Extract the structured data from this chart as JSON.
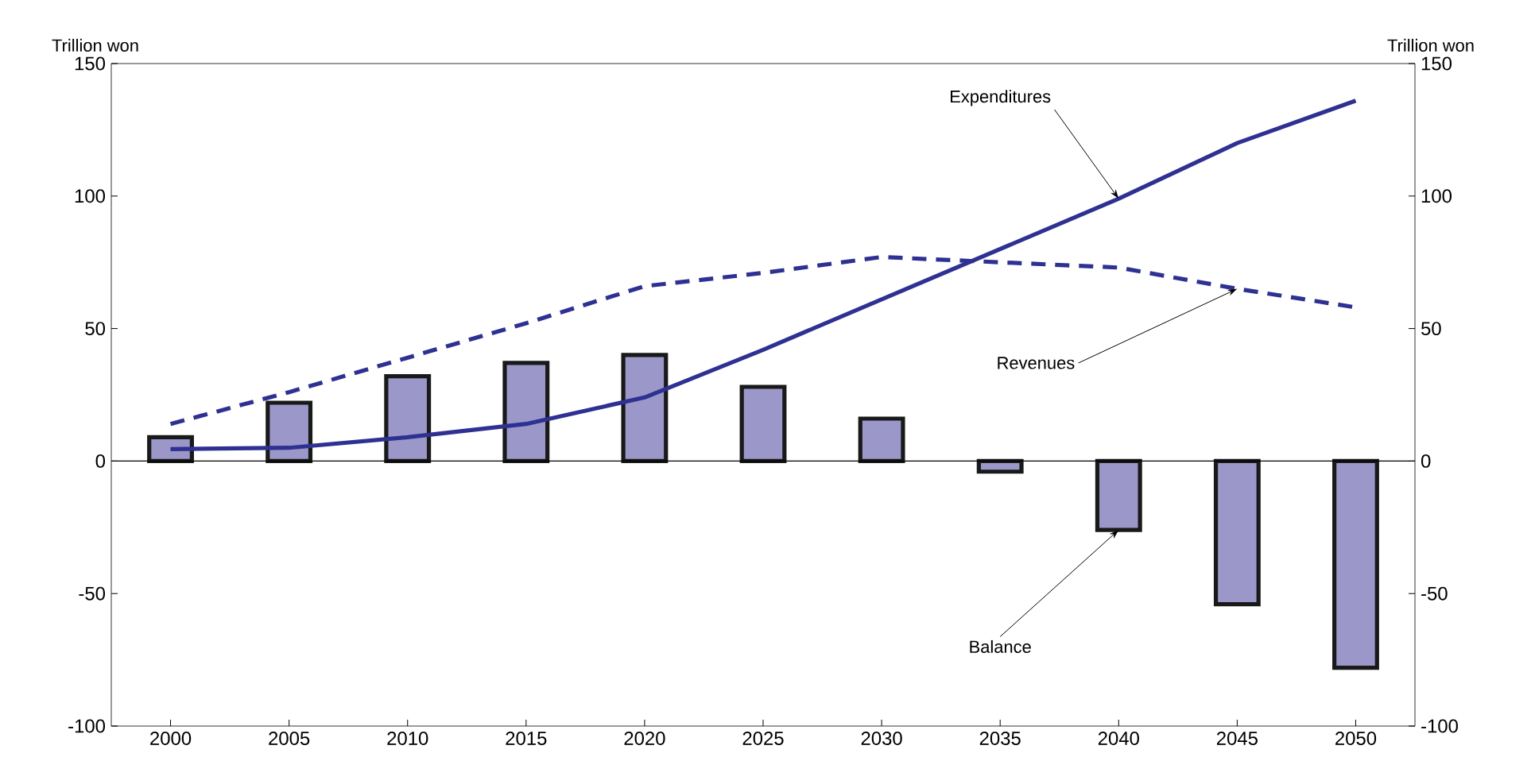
{
  "chart_data": {
    "type": "bar",
    "ylabel": "Trillion won",
    "y2label": "Trillion won",
    "categories": [
      "2000",
      "2005",
      "2010",
      "2015",
      "2020",
      "2025",
      "2030",
      "2035",
      "2040",
      "2045",
      "2050"
    ],
    "ylim": [
      -100,
      150
    ],
    "yticks": [
      -100,
      -50,
      0,
      50,
      100,
      150
    ],
    "y2lim": [
      -100,
      150
    ],
    "y2ticks": [
      -100,
      -50,
      0,
      50,
      100,
      150
    ],
    "series": [
      {
        "color": "#9b98c9",
        "values": [
          9,
          22,
          32,
          37,
          40,
          28,
          16,
          -4,
          -26,
          -54,
          -78
        ]
      },
      {
        "type": "line",
        "color": "#2e3192",
        "line_style": "solid",
        "values": [
          4.5,
          5,
          9,
          14,
          24,
          42,
          61,
          80,
          99,
          120,
          136
        ]
      },
      {
        "type": "line",
        "color": "#2e3192",
        "line_style": "dashed",
        "values": [
          14,
          26,
          39,
          52,
          66,
          71,
          77,
          75,
          73,
          65,
          58
        ]
      }
    ],
    "annotations": [
      {
        "text": "Expenditures",
        "x": "2040",
        "y": 99
      },
      {
        "text": "Revenues",
        "x": "2045",
        "y": 65
      },
      {
        "text": "Balance",
        "x": "2040",
        "y": -26
      }
    ]
  }
}
